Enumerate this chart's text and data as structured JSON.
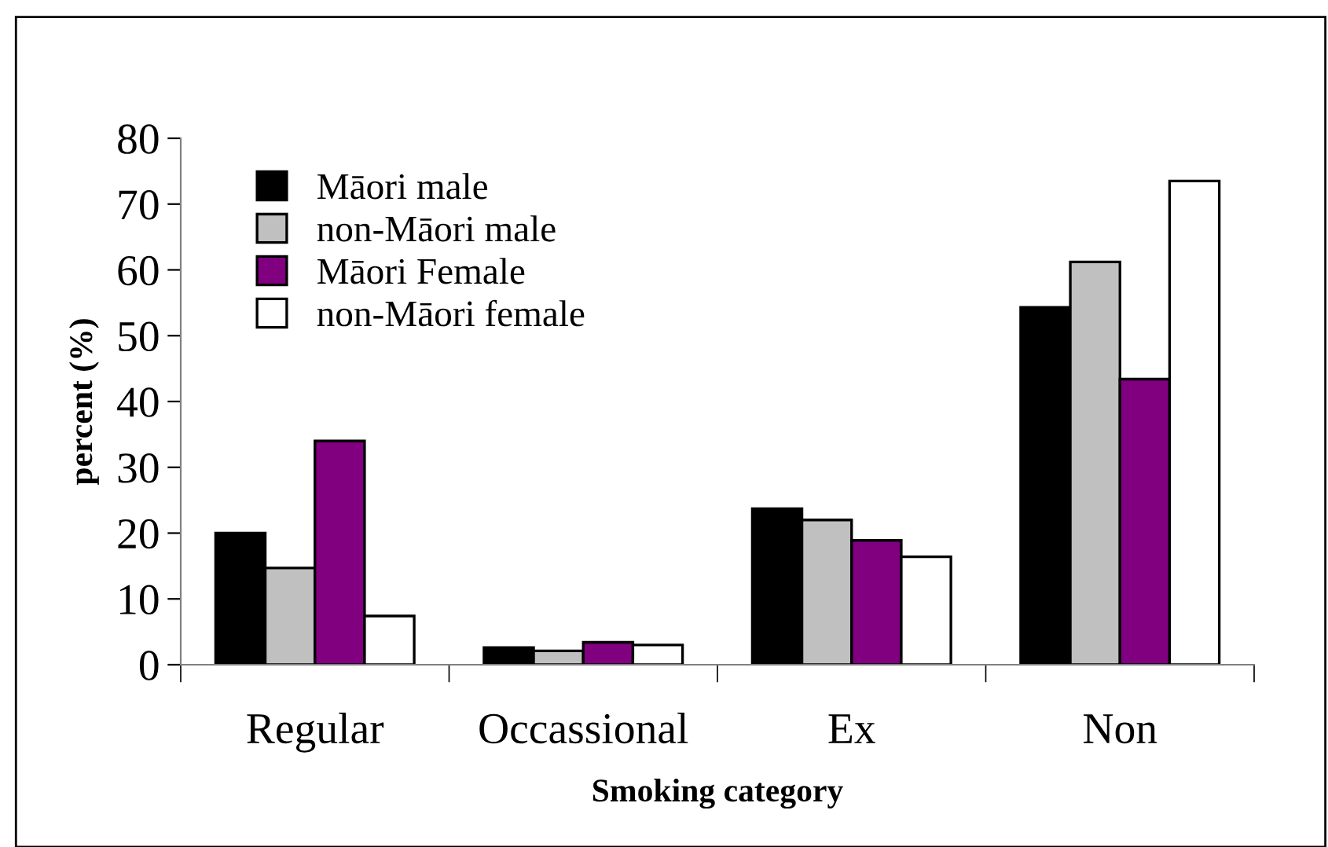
{
  "chart_data": {
    "type": "bar",
    "xlabel": "Smoking category",
    "ylabel": "percent (%)",
    "categories": [
      "Regular",
      "Occassional",
      "Ex",
      "Non"
    ],
    "series": [
      {
        "name": "Māori male",
        "color": "#000000",
        "values": [
          20,
          2.6,
          23.7,
          54.3
        ]
      },
      {
        "name": "non-Māori male",
        "color": "#c0c0c0",
        "values": [
          14.7,
          2.1,
          22,
          61.2
        ]
      },
      {
        "name": "Māori Female",
        "color": "#800080",
        "values": [
          34,
          3.4,
          18.9,
          43.4
        ]
      },
      {
        "name": "non-Māori female",
        "color": "#ffffff",
        "values": [
          7.4,
          3.0,
          16.4,
          73.5
        ]
      }
    ],
    "ylim": [
      0,
      80
    ],
    "yticks": [
      0,
      10,
      20,
      30,
      40,
      50,
      60,
      70,
      80
    ],
    "grid": false,
    "legend": "top left"
  }
}
